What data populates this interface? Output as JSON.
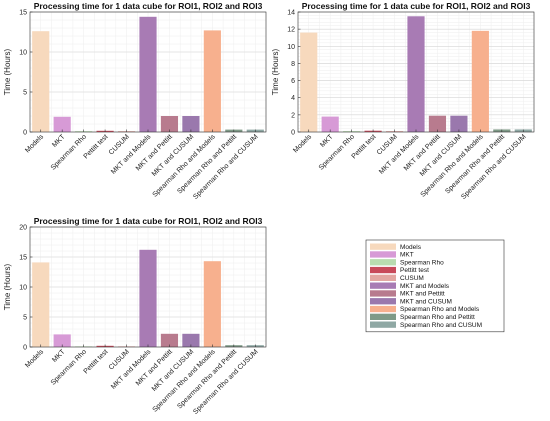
{
  "chart_data": [
    {
      "type": "bar",
      "title": "Processing time for 1 data cube for ROI1, ROI2 and ROI3",
      "ylabel": "Time (Hours)",
      "xlabel": "",
      "ylim": [
        0,
        15
      ],
      "yticks": [
        0,
        5,
        10,
        15
      ],
      "grid": true,
      "categories": [
        "Models",
        "MKT",
        "Spearman Rho",
        "Pettitt test",
        "CUSUM",
        "MKT and Models",
        "MKT and Pettitt",
        "MKT and CUSUM",
        "Spearman Rho and Models",
        "Spearman Rho and Pettitt",
        "Spearman Rho and CUSUM"
      ],
      "values": [
        12.6,
        1.9,
        0.1,
        0.15,
        0.1,
        14.4,
        2.0,
        2.0,
        12.7,
        0.3,
        0.3
      ]
    },
    {
      "type": "bar",
      "title": "Processing time for 1 data cube for ROI1, ROI2 and ROI3",
      "ylabel": "Time (Hours)",
      "xlabel": "",
      "ylim": [
        0,
        14
      ],
      "yticks": [
        0,
        2,
        4,
        6,
        8,
        10,
        12,
        14
      ],
      "grid": true,
      "categories": [
        "Models",
        "MKT",
        "Spearman Rho",
        "Pettitt test",
        "CUSUM",
        "MKT and Models",
        "MKT and Pettitt",
        "MKT and CUSUM",
        "Spearman Rho and Models",
        "Spearman Rho and Pettitt",
        "Spearman Rho and CUSUM"
      ],
      "values": [
        11.6,
        1.8,
        0.1,
        0.15,
        0.1,
        13.5,
        1.9,
        1.9,
        11.8,
        0.3,
        0.3
      ]
    },
    {
      "type": "bar",
      "title": "Processing time for 1 data cube for ROI1, ROI2 and ROI3",
      "ylabel": "Time (Hours)",
      "xlabel": "",
      "ylim": [
        0,
        20
      ],
      "yticks": [
        0,
        5,
        10,
        15,
        20
      ],
      "grid": true,
      "categories": [
        "Models",
        "MKT",
        "Spearman Rho",
        "Pettitt test",
        "CUSUM",
        "MKT and Models",
        "MKT and Pettitt",
        "MKT and CUSUM",
        "Spearman Rho and Models",
        "Spearman Rho and Pettitt",
        "Spearman Rho and CUSUM"
      ],
      "values": [
        14.1,
        2.1,
        0.1,
        0.2,
        0.1,
        16.2,
        2.2,
        2.2,
        14.3,
        0.3,
        0.3
      ]
    }
  ],
  "legend": {
    "placement": "bottom-right",
    "items": [
      {
        "label": "Models",
        "color": "#f7d9bd"
      },
      {
        "label": "MKT",
        "color": "#d79ad6"
      },
      {
        "label": "Spearman Rho",
        "color": "#b9dcb0"
      },
      {
        "label": "Pettitt test",
        "color": "#c84a5a"
      },
      {
        "label": "CUSUM",
        "color": "#e3a7a2"
      },
      {
        "label": "MKT and Models",
        "color": "#a87bb4"
      },
      {
        "label": "MKT and Pettitt",
        "color": "#b87b8e"
      },
      {
        "label": "MKT and CUSUM",
        "color": "#9a78ad"
      },
      {
        "label": "Spearman Rho and Models",
        "color": "#f7b08e"
      },
      {
        "label": "Spearman Rho and Pettitt",
        "color": "#7f9a87"
      },
      {
        "label": "Spearman Rho and CUSUM",
        "color": "#8fa8a4"
      }
    ]
  }
}
